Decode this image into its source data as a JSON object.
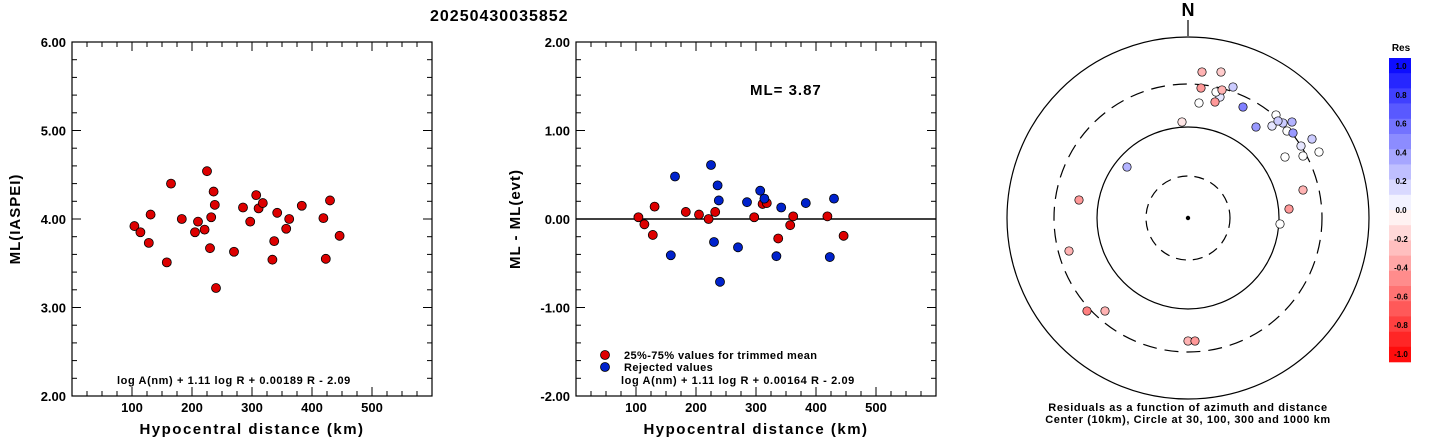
{
  "event_id": "20250430035852",
  "colors": {
    "retained": "#dd0000",
    "rejected": "#0022cc",
    "axis": "#000000"
  },
  "chart_data": [
    {
      "type": "scatter",
      "xlabel": "Hypocentral distance (km)",
      "ylabel": "ML(IASPEI)",
      "xlim": [
        0,
        600
      ],
      "ylim": [
        2.0,
        6.0
      ],
      "xticks": [
        "100",
        "200",
        "300",
        "400",
        "500"
      ],
      "yticks": [
        "2.00",
        "3.00",
        "4.00",
        "5.00",
        "6.00"
      ],
      "formula": "log A(nm) + 1.11 log R + 0.00189 R - 2.09",
      "series": [
        {
          "color": "red",
          "points": [
            [
              104,
              3.92
            ],
            [
              114,
              3.85
            ],
            [
              128,
              3.73
            ],
            [
              131,
              4.05
            ],
            [
              158,
              3.51
            ],
            [
              165,
              4.4
            ],
            [
              183,
              4.0
            ],
            [
              205,
              3.85
            ],
            [
              210,
              3.97
            ],
            [
              221,
              3.88
            ],
            [
              225,
              4.54
            ],
            [
              230,
              3.67
            ],
            [
              232,
              4.02
            ],
            [
              236,
              4.31
            ],
            [
              238,
              4.16
            ],
            [
              240,
              3.22
            ],
            [
              270,
              3.63
            ],
            [
              285,
              4.13
            ],
            [
              297,
              3.97
            ],
            [
              307,
              4.27
            ],
            [
              311,
              4.12
            ],
            [
              318,
              4.18
            ],
            [
              334,
              3.54
            ],
            [
              337,
              3.75
            ],
            [
              342,
              4.07
            ],
            [
              357,
              3.89
            ],
            [
              362,
              4.0
            ],
            [
              383,
              4.15
            ],
            [
              419,
              4.01
            ],
            [
              423,
              3.55
            ],
            [
              430,
              4.21
            ],
            [
              446,
              3.81
            ]
          ]
        }
      ]
    },
    {
      "type": "scatter",
      "xlabel": "Hypocentral distance (km)",
      "ylabel": "ML - ML(evt)",
      "xlim": [
        0,
        600
      ],
      "ylim": [
        -2.0,
        2.0
      ],
      "xticks": [
        "100",
        "200",
        "300",
        "400",
        "500"
      ],
      "yticks": [
        "-2.00",
        "-1.00",
        "0.00",
        "1.00",
        "2.00"
      ],
      "annotation": "ML= 3.87",
      "legend": [
        "25%-75% values for trimmed mean",
        "Rejected values"
      ],
      "formula": "log A(nm) + 1.11 log R + 0.00164 R - 2.09",
      "series": [
        {
          "name": "25%-75% values for trimmed mean",
          "color": "red",
          "points": [
            [
              104,
              0.02
            ],
            [
              114,
              -0.06
            ],
            [
              128,
              -0.18
            ],
            [
              131,
              0.14
            ],
            [
              183,
              0.08
            ],
            [
              205,
              0.05
            ],
            [
              221,
              0.0
            ],
            [
              232,
              0.08
            ],
            [
              297,
              0.02
            ],
            [
              311,
              0.17
            ],
            [
              318,
              0.18
            ],
            [
              337,
              -0.22
            ],
            [
              357,
              -0.07
            ],
            [
              362,
              0.03
            ],
            [
              419,
              0.03
            ],
            [
              446,
              -0.19
            ]
          ]
        },
        {
          "name": "Rejected values",
          "color": "blue",
          "points": [
            [
              158,
              -0.41
            ],
            [
              165,
              0.48
            ],
            [
              225,
              0.61
            ],
            [
              230,
              -0.26
            ],
            [
              236,
              0.38
            ],
            [
              238,
              0.21
            ],
            [
              240,
              -0.71
            ],
            [
              270,
              -0.32
            ],
            [
              285,
              0.19
            ],
            [
              307,
              0.32
            ],
            [
              314,
              0.23
            ],
            [
              334,
              -0.42
            ],
            [
              342,
              0.13
            ],
            [
              383,
              0.18
            ],
            [
              423,
              -0.43
            ],
            [
              430,
              0.23
            ]
          ]
        }
      ]
    },
    {
      "type": "polar-scatter",
      "north_label": "N",
      "caption_line1": "Residuals as a function of azimuth and distance",
      "caption_line2": "Center (10km), Circle at 30, 100, 300 and 1000 km",
      "colorbar": {
        "title": "Res",
        "ticks": [
          "1.0",
          "0.8",
          "0.6",
          "0.4",
          "0.2",
          "0.0",
          "-0.2",
          "-0.4",
          "-0.6",
          "-0.8",
          "-1.0"
        ]
      },
      "stations_residual": [
        -0.5,
        -0.3,
        -0.4,
        -0.3,
        -0.1,
        0.0,
        -0.3,
        -0.4,
        0.3,
        0.1,
        0.5,
        0.4,
        0.0,
        0.1,
        0.2,
        0.3,
        0.0,
        0.2,
        0.4,
        0.1,
        0.2,
        0.0,
        0.0,
        0.0,
        -0.3,
        -0.2,
        0.0,
        0.2,
        0.0,
        -0.4,
        -0.3,
        -0.4,
        -0.3,
        -0.4
      ]
    }
  ]
}
